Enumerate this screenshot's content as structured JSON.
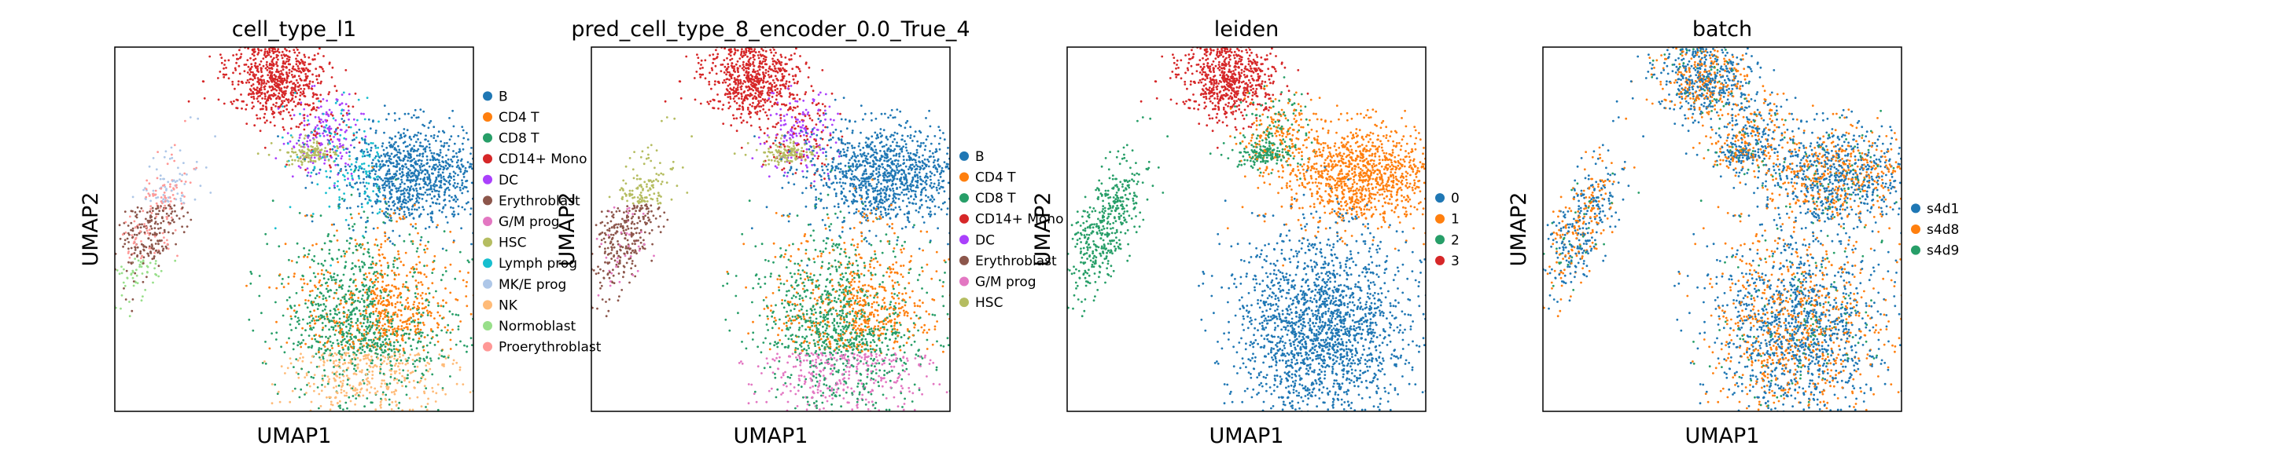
{
  "chart_data": [
    {
      "type": "scatter",
      "title": "cell_type_l1",
      "xlabel": "UMAP1",
      "ylabel": "UMAP2",
      "grid": false,
      "legend_placement": "right",
      "legend": [
        "B",
        "CD4 T",
        "CD8 T",
        "CD14+ Mono",
        "DC",
        "Erythroblast",
        "G/M prog",
        "HSC",
        "Lymph prog",
        "MK/E prog",
        "NK",
        "Normoblast",
        "Proerythroblast"
      ],
      "series": [
        {
          "name": "B",
          "color": "#1f77b4"
        },
        {
          "name": "CD4 T",
          "color": "#ff7f0e"
        },
        {
          "name": "CD8 T",
          "color": "#279e68"
        },
        {
          "name": "CD14+ Mono",
          "color": "#d62728"
        },
        {
          "name": "DC",
          "color": "#aa40fc"
        },
        {
          "name": "Erythroblast",
          "color": "#8c564b"
        },
        {
          "name": "G/M prog",
          "color": "#e377c2"
        },
        {
          "name": "HSC",
          "color": "#b5bd61"
        },
        {
          "name": "Lymph prog",
          "color": "#17becf"
        },
        {
          "name": "MK/E prog",
          "color": "#aec7e8"
        },
        {
          "name": "NK",
          "color": "#ffbb78"
        },
        {
          "name": "Normoblast",
          "color": "#98df8a"
        },
        {
          "name": "Proerythroblast",
          "color": "#ff9896"
        }
      ]
    },
    {
      "type": "scatter",
      "title": "pred_cell_type_8_encoder_0.0_True_4",
      "xlabel": "UMAP1",
      "ylabel": "UMAP2",
      "grid": false,
      "legend_placement": "right",
      "legend": [
        "B",
        "CD4 T",
        "CD8 T",
        "CD14+ Mono",
        "DC",
        "Erythroblast",
        "G/M prog",
        "HSC"
      ],
      "series": [
        {
          "name": "B",
          "color": "#1f77b4"
        },
        {
          "name": "CD4 T",
          "color": "#ff7f0e"
        },
        {
          "name": "CD8 T",
          "color": "#279e68"
        },
        {
          "name": "CD14+ Mono",
          "color": "#d62728"
        },
        {
          "name": "DC",
          "color": "#aa40fc"
        },
        {
          "name": "Erythroblast",
          "color": "#8c564b"
        },
        {
          "name": "G/M prog",
          "color": "#e377c2"
        },
        {
          "name": "HSC",
          "color": "#b5bd61"
        }
      ]
    },
    {
      "type": "scatter",
      "title": "leiden",
      "xlabel": "UMAP1",
      "ylabel": "UMAP2",
      "grid": false,
      "legend_placement": "right",
      "legend": [
        "0",
        "1",
        "2",
        "3"
      ],
      "series": [
        {
          "name": "0",
          "color": "#1f77b4"
        },
        {
          "name": "1",
          "color": "#ff7f0e"
        },
        {
          "name": "2",
          "color": "#279e68"
        },
        {
          "name": "3",
          "color": "#d62728"
        }
      ]
    },
    {
      "type": "scatter",
      "title": "batch",
      "xlabel": "UMAP1",
      "ylabel": "UMAP2",
      "grid": false,
      "legend_placement": "right",
      "legend": [
        "s4d1",
        "s4d8",
        "s4d9"
      ],
      "series": [
        {
          "name": "s4d1",
          "color": "#1f77b4"
        },
        {
          "name": "s4d8",
          "color": "#ff7f0e"
        },
        {
          "name": "s4d9",
          "color": "#279e68"
        }
      ]
    }
  ]
}
